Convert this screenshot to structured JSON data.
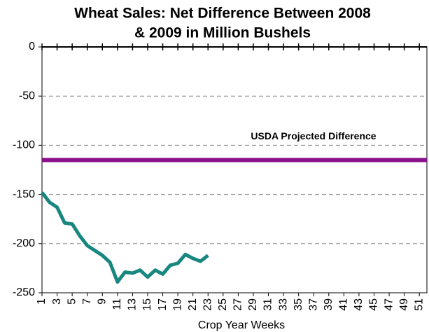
{
  "chart_data": {
    "type": "line",
    "title": [
      "Wheat Sales:  Net Difference Between 2008",
      "& 2009  in Million Bushels"
    ],
    "x_label": "Crop Year Weeks",
    "x": [
      1,
      2,
      3,
      4,
      5,
      6,
      7,
      8,
      9,
      10,
      11,
      12,
      13,
      14,
      15,
      16,
      17,
      18,
      19,
      20,
      21,
      22,
      23
    ],
    "values": [
      -148,
      -158,
      -163,
      -179,
      -180,
      -192,
      -202,
      -207,
      -212,
      -219,
      -239,
      -229,
      -230,
      -227,
      -234,
      -227,
      -231,
      -222,
      -220,
      -211,
      -215,
      -218,
      -212
    ],
    "color": "#18877f",
    "reference_line": {
      "label": "USDA Projected Difference",
      "value": -115,
      "color": "#8a0f8a"
    },
    "xlim": [
      1,
      52
    ],
    "xticks": [
      1,
      3,
      5,
      7,
      9,
      11,
      13,
      15,
      17,
      19,
      21,
      23,
      25,
      27,
      29,
      31,
      33,
      35,
      37,
      39,
      41,
      43,
      45,
      47,
      49,
      51
    ],
    "ylim": [
      -250,
      0
    ],
    "yticks": [
      0,
      -50,
      -100,
      -150,
      -200,
      -250
    ],
    "grid": true
  }
}
